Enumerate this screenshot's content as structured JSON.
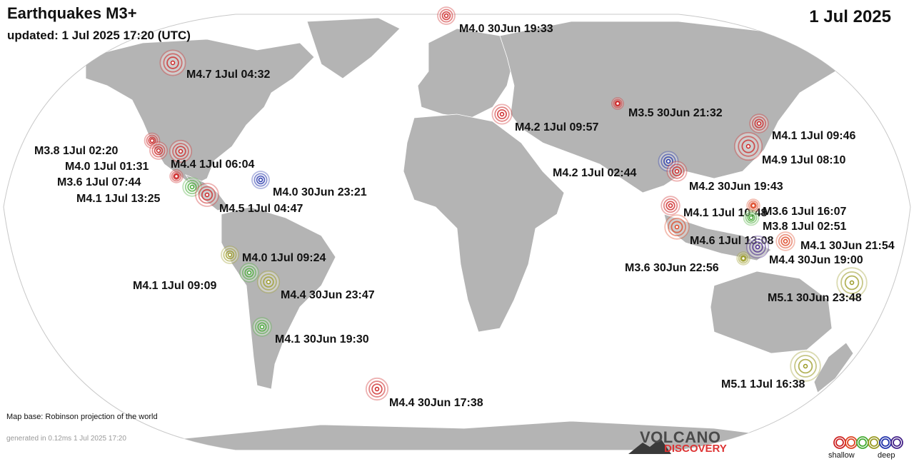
{
  "header": {
    "title": "Earthquakes M3+",
    "updated": "updated:  1 Jul 2025 17:20 (UTC)",
    "date": "1 Jul 2025"
  },
  "footer": {
    "map_base": "Map base: Robinson projection of the world",
    "generated": "generated in 0.12ms  1 Jul 2025 17:20",
    "logo_line1": "VOLCANO",
    "logo_line2": "DISCOVERY"
  },
  "legend": {
    "shallow_label": "shallow",
    "deep_label": "deep",
    "depth_colors": [
      "#cc2222",
      "#dd4422",
      "#44aa33",
      "#999922",
      "#2233aa",
      "#442288"
    ]
  },
  "colors": {
    "ocean": "#ffffff",
    "land": "#b4b4b4",
    "coast": "#ffffff"
  },
  "quakes": [
    {
      "label": "M4.0 30Jun 19:33",
      "magnitude": 4.0,
      "depth_color": "#cc2222"
    },
    {
      "label": "M4.7  1Jul 04:32",
      "magnitude": 4.7,
      "depth_color": "#cc2222"
    },
    {
      "label": "M3.5 30Jun 21:32",
      "magnitude": 3.5,
      "depth_color": "#cc2222"
    },
    {
      "label": "M4.2  1Jul 09:57",
      "magnitude": 4.2,
      "depth_color": "#cc2222"
    },
    {
      "label": "M4.1  1Jul 09:46",
      "magnitude": 4.1,
      "depth_color": "#cc2222"
    },
    {
      "label": "M4.9  1Jul 08:10",
      "magnitude": 4.9,
      "depth_color": "#cc2222"
    },
    {
      "label": "M3.8  1Jul 02:20",
      "magnitude": 3.8,
      "depth_color": "#cc2222"
    },
    {
      "label": "M4.0  1Jul 01:31",
      "magnitude": 4.0,
      "depth_color": "#cc2222"
    },
    {
      "label": "M4.4  1Jul 06:04",
      "magnitude": 4.4,
      "depth_color": "#cc2222"
    },
    {
      "label": "M3.6  1Jul 07:44",
      "magnitude": 3.6,
      "depth_color": "#cc2222"
    },
    {
      "label": "M4.1  1Jul 13:25",
      "magnitude": 4.1,
      "depth_color": "#44aa33"
    },
    {
      "label": "M4.5  1Jul 04:47",
      "magnitude": 4.5,
      "depth_color": "#cc2222"
    },
    {
      "label": "M4.0 30Jun 23:21",
      "magnitude": 4.0,
      "depth_color": "#2233aa"
    },
    {
      "label": "M4.2  1Jul 02:44",
      "magnitude": 4.2,
      "depth_color": "#2233aa"
    },
    {
      "label": "M4.2 30Jun 19:43",
      "magnitude": 4.2,
      "depth_color": "#cc2222"
    },
    {
      "label": "M4.1  1Jul 10:48",
      "magnitude": 4.1,
      "depth_color": "#cc2222"
    },
    {
      "label": "M3.6  1Jul 16:07",
      "magnitude": 3.6,
      "depth_color": "#dd4422"
    },
    {
      "label": "M3.8  1Jul 02:51",
      "magnitude": 3.8,
      "depth_color": "#44aa33"
    },
    {
      "label": "M4.6  1Jul 13:08",
      "magnitude": 4.6,
      "depth_color": "#dd4422"
    },
    {
      "label": "M4.1 30Jun 21:54",
      "magnitude": 4.1,
      "depth_color": "#dd4422"
    },
    {
      "label": "M4.4 30Jun 19:00",
      "magnitude": 4.4,
      "depth_color": "#442288"
    },
    {
      "label": "M3.6 30Jun 22:56",
      "magnitude": 3.6,
      "depth_color": "#999922"
    },
    {
      "label": "M4.0  1Jul 09:24",
      "magnitude": 4.0,
      "depth_color": "#999922"
    },
    {
      "label": "M4.1  1Jul 09:09",
      "magnitude": 4.1,
      "depth_color": "#44aa33"
    },
    {
      "label": "M4.4 30Jun 23:47",
      "magnitude": 4.4,
      "depth_color": "#999922"
    },
    {
      "label": "M4.1 30Jun 19:30",
      "magnitude": 4.1,
      "depth_color": "#44aa33"
    },
    {
      "label": "M5.1 30Jun 23:48",
      "magnitude": 5.1,
      "depth_color": "#999922"
    },
    {
      "label": "M5.1  1Jul 16:38",
      "magnitude": 5.1,
      "depth_color": "#999922"
    },
    {
      "label": "M4.4 30Jun 17:38",
      "magnitude": 4.4,
      "depth_color": "#cc2222"
    }
  ]
}
